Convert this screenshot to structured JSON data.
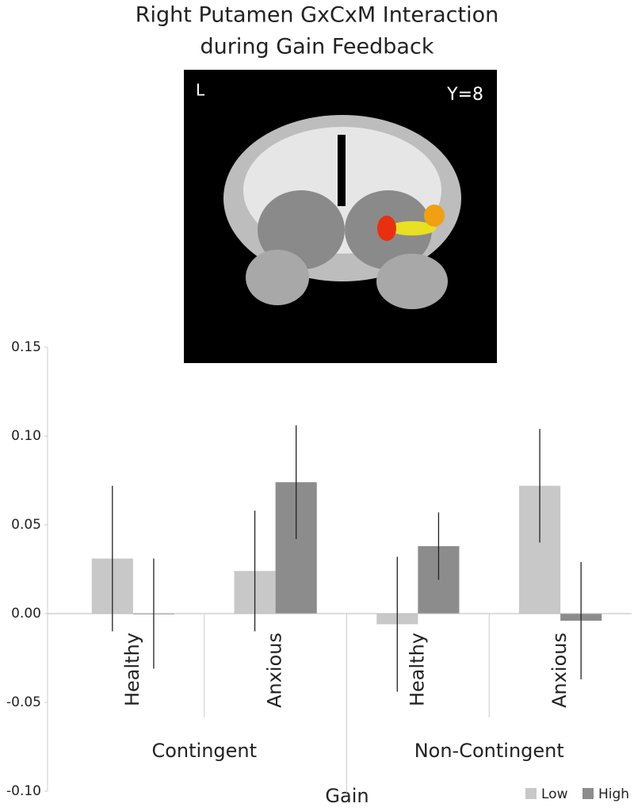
{
  "chart_data": {
    "type": "bar",
    "title_lines": [
      "Right Putamen GxCxM Interaction",
      "during Gain Feedback"
    ],
    "image": {
      "left_label": "L",
      "slice_label": "Y=8"
    },
    "categories": [
      "Healthy",
      "Anxious",
      "Healthy",
      "Anxious"
    ],
    "groups": [
      "Contingent",
      "Non-Contingent"
    ],
    "x_label": "Gain",
    "series": [
      {
        "name": "Low",
        "color": "#c8c8c8",
        "values": [
          0.031,
          0.024,
          -0.006,
          0.072
        ],
        "errors": [
          0.041,
          0.034,
          0.038,
          0.032
        ]
      },
      {
        "name": "High",
        "color": "#8c8c8c",
        "values": [
          0.0,
          0.074,
          0.038,
          -0.004
        ],
        "errors": [
          0.031,
          0.032,
          0.019,
          0.033
        ]
      }
    ],
    "ylim": [
      -0.1,
      0.15
    ],
    "yticks": [
      {
        "value": -0.1,
        "label": "-0.10"
      },
      -0.05,
      {
        "value": 0,
        "label": "0.00"
      },
      0.05,
      {
        "value": 0.1,
        "label": "0.10"
      },
      0.15
    ],
    "legend": "bottom-right"
  }
}
